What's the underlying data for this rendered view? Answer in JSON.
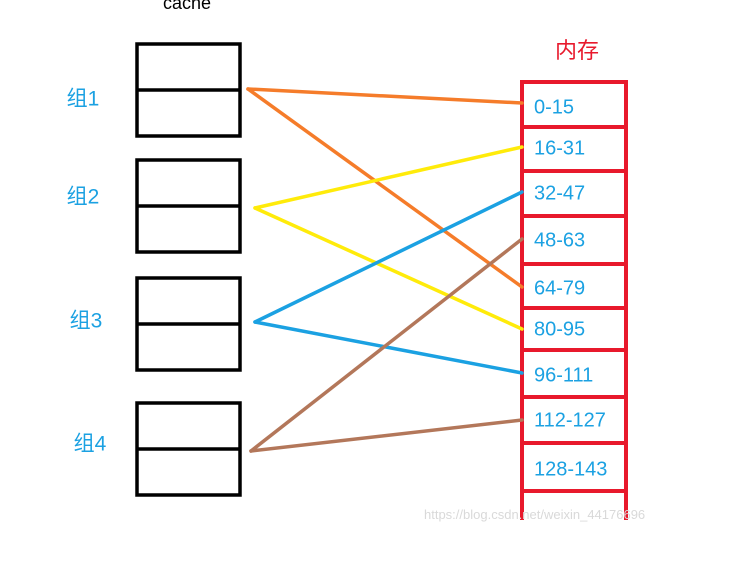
{
  "cache_label": "cache",
  "memory_label": "内存",
  "groups": [
    {
      "label": "组1",
      "color": "#f57c2a"
    },
    {
      "label": "组2",
      "color": "#ffeb0a"
    },
    {
      "label": "组3",
      "color": "#1ba1e2"
    },
    {
      "label": "组4",
      "color": "#b3775a"
    }
  ],
  "memory_blocks": [
    "0-15",
    "16-31",
    "32-47",
    "48-63",
    "64-79",
    "80-95",
    "96-111",
    "112-127",
    "128-143"
  ],
  "mappings": [
    {
      "group": 0,
      "block": 0
    },
    {
      "group": 0,
      "block": 4
    },
    {
      "group": 1,
      "block": 1
    },
    {
      "group": 1,
      "block": 5
    },
    {
      "group": 2,
      "block": 2
    },
    {
      "group": 2,
      "block": 6
    },
    {
      "group": 3,
      "block": 3
    },
    {
      "group": 3,
      "block": 7
    }
  ],
  "colors": {
    "label_blue": "#1ba1e2",
    "memory_red": "#e8192c",
    "cache_black": "#000000"
  },
  "watermark": "https://blog.csdn.net/weixin_44176696"
}
